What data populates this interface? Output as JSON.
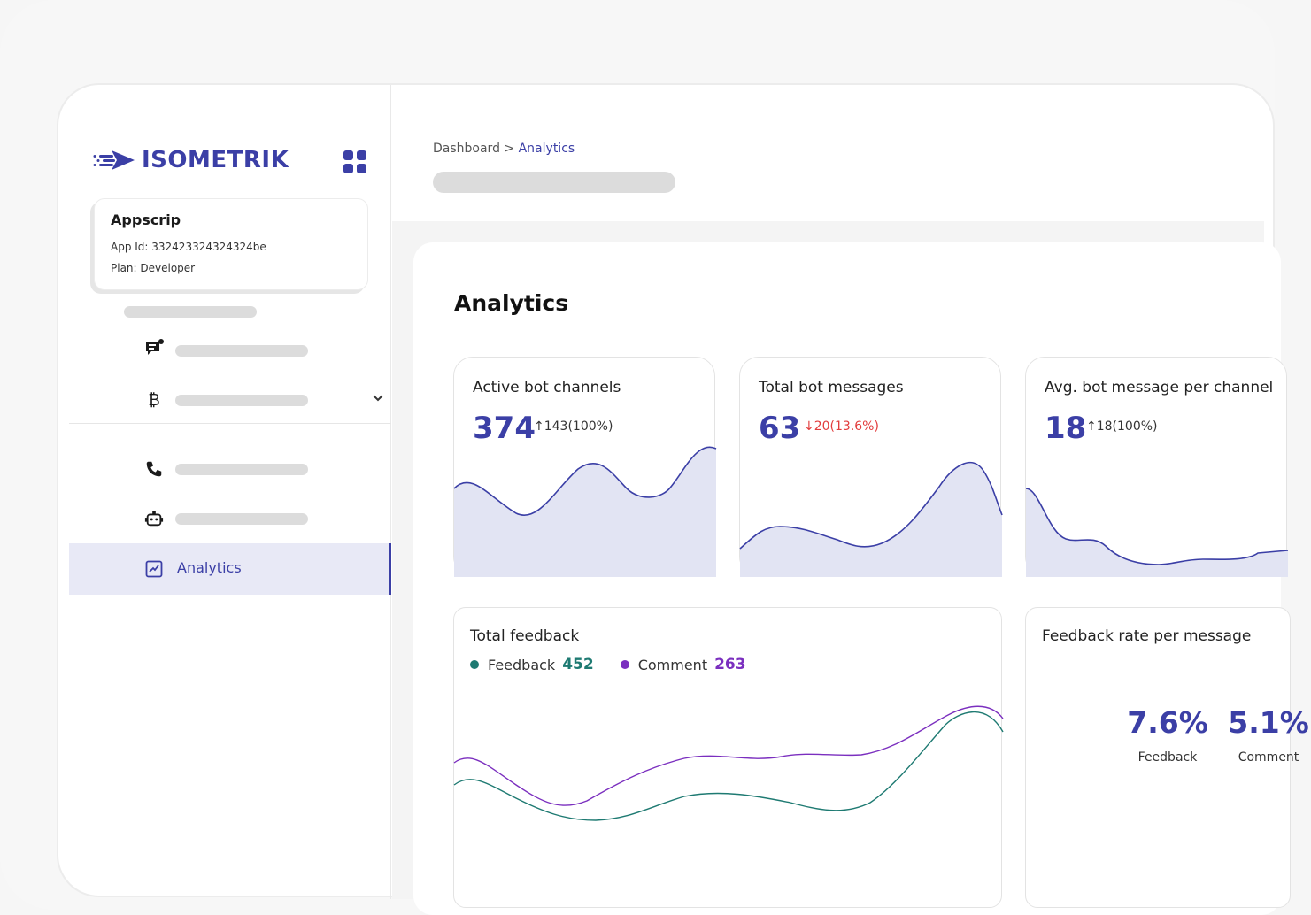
{
  "brand": {
    "name": "ISOMETRIK",
    "color": "#3b3fa6"
  },
  "app_card": {
    "name": "Appscrip",
    "app_id": "App Id: 332423324324324be",
    "plan": "Plan: Developer"
  },
  "sidebar": {
    "icons": [
      "chat-icon",
      "bitcoin-icon",
      "phone-icon",
      "bot-icon",
      "analytics-icon"
    ],
    "active_item": "Analytics"
  },
  "breadcrumb": {
    "parent": "Dashboard",
    "separator": " > ",
    "current": "Analytics"
  },
  "page_title": "Analytics",
  "stats": [
    {
      "title": "Active bot channels",
      "value": "374",
      "delta": "↑143(100%)",
      "trend": "up"
    },
    {
      "title": "Total bot messages",
      "value": "63",
      "delta": "↓20(13.6%)",
      "trend": "down"
    },
    {
      "title": "Avg. bot message per channel",
      "value": "18",
      "delta": "↑18(100%)",
      "trend": "up"
    }
  ],
  "feedback": {
    "title": "Total feedback",
    "series": [
      {
        "name": "Feedback",
        "value": "452",
        "color": "#1e7a72"
      },
      {
        "name": "Comment",
        "value": "263",
        "color": "#7b2fbf"
      }
    ]
  },
  "rate": {
    "title": "Feedback rate per message",
    "items": [
      {
        "value": "7.6%",
        "label": "Feedback"
      },
      {
        "value": "5.1%",
        "label": "Comment"
      }
    ]
  }
}
